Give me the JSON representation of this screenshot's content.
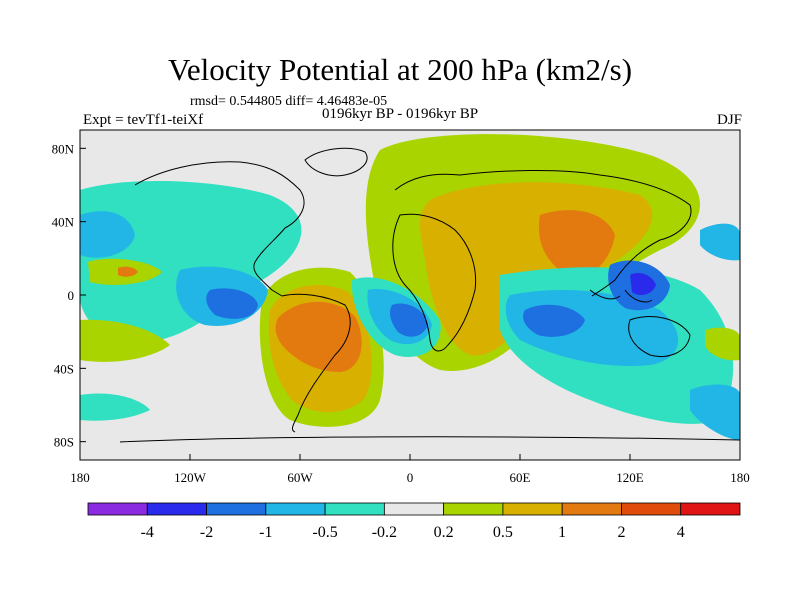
{
  "title": "Velocity Potential at 200 hPa (km2/s)",
  "stats": "rmsd= 0.544805 diff= 4.46483e-05",
  "experiment": "Expt = tevTf1-teiXf",
  "period": "0196kyr BP - 0196kyr BP",
  "season": "DJF",
  "map": {
    "lon_ticks": [
      "180",
      "120W",
      "60W",
      "0",
      "60E",
      "120E",
      "180"
    ],
    "lat_ticks": [
      "80N",
      "40N",
      "0",
      "40S",
      "80S"
    ],
    "lon_values": [
      -180,
      -120,
      -60,
      0,
      60,
      120,
      180
    ],
    "lat_values": [
      80,
      40,
      0,
      -40,
      -80
    ],
    "lon_range": [
      -180,
      180
    ],
    "lat_range": [
      -90,
      90
    ]
  },
  "colorbar": {
    "colors": [
      "#8a2be2",
      "#2a2aec",
      "#1e6fe0",
      "#22b6e6",
      "#30e0c0",
      "#e8e8e8",
      "#aad400",
      "#d8b000",
      "#e27a10",
      "#e04a0a",
      "#e01414"
    ],
    "labels": [
      "-4",
      "-2",
      "-1",
      "-0.5",
      "-0.2",
      "0.2",
      "0.5",
      "1",
      "2",
      "4"
    ]
  },
  "colors": {
    "neutral": "#e8e8e8",
    "lightgreen": "#aad400",
    "yellow": "#d8b000",
    "orange": "#e27a10",
    "aqua": "#30e0c0",
    "cyan": "#22b6e6",
    "blue": "#1e6fe0",
    "darkblue": "#2a2aec",
    "coast": "#000000"
  }
}
